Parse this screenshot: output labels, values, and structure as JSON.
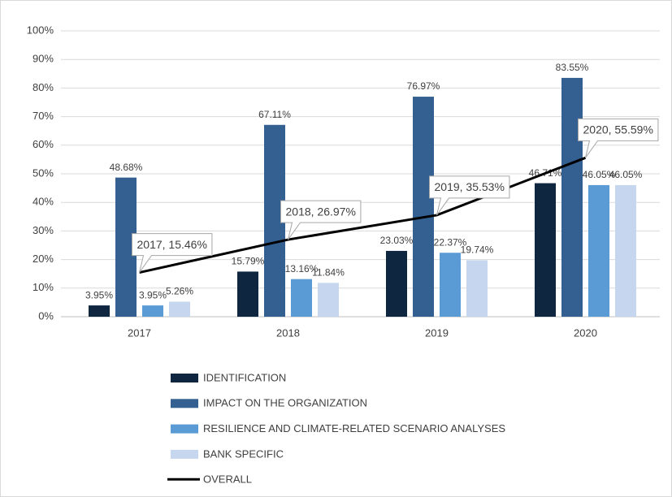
{
  "chart_data": {
    "type": "bar",
    "categories": [
      "2017",
      "2018",
      "2019",
      "2020"
    ],
    "series": [
      {
        "name": "IDENTIFICATION",
        "color": "#0f2640",
        "values": [
          3.95,
          15.79,
          23.03,
          46.71
        ],
        "value_labels": [
          "3.95%",
          "15.79%",
          "23.03%",
          "46.71%"
        ]
      },
      {
        "name": "IMPACT ON THE ORGANIZATION",
        "color": "#335f91",
        "values": [
          48.68,
          67.11,
          76.97,
          83.55
        ],
        "value_labels": [
          "48.68%",
          "67.11%",
          "76.97%",
          "83.55%"
        ]
      },
      {
        "name": "RESILIENCE AND CLIMATE-RELATED SCENARIO ANALYSES",
        "color": "#5b9bd5",
        "values": [
          3.95,
          13.16,
          22.37,
          46.05
        ],
        "value_labels": [
          "3.95%",
          "13.16%",
          "22.37%",
          "46.05%"
        ]
      },
      {
        "name": "BANK SPECIFIC",
        "color": "#c5d6ee",
        "values": [
          5.26,
          11.84,
          19.74,
          46.05
        ],
        "value_labels": [
          "5.26%",
          "11.84%",
          "19.74%",
          "46.05%"
        ]
      },
      {
        "name": "OVERALL",
        "type": "line",
        "color": "#000000",
        "values": [
          15.46,
          26.97,
          35.53,
          55.59
        ],
        "value_labels": [
          "2017, 15.46%",
          "2018, 26.97%",
          "2019, 35.53%",
          "2020, 55.59%"
        ]
      }
    ],
    "ylim": [
      0,
      100
    ],
    "yticks": [
      {
        "value": 0,
        "label": "0%"
      },
      {
        "value": 10,
        "label": "10%"
      },
      {
        "value": 20,
        "label": "20%"
      },
      {
        "value": 30,
        "label": "30%"
      },
      {
        "value": 40,
        "label": "40%"
      },
      {
        "value": 50,
        "label": "50%"
      },
      {
        "value": 60,
        "label": "60%"
      },
      {
        "value": 70,
        "label": "70%"
      },
      {
        "value": 80,
        "label": "80%"
      },
      {
        "value": 90,
        "label": "90%"
      },
      {
        "value": 100,
        "label": "100%"
      }
    ],
    "grid": true,
    "legend": "bottom"
  }
}
